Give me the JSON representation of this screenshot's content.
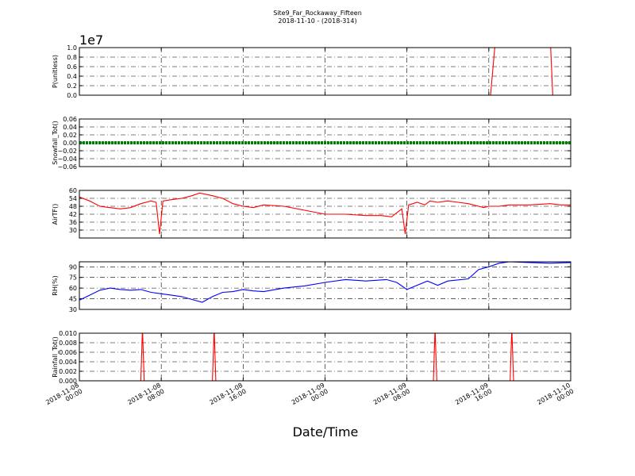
{
  "chart_data": {
    "type": "line",
    "title": "Site9_Far_Rockaway_Fifteen",
    "subtitle": "2018-11-10 - (2018-314)",
    "xlabel": "Date/Time",
    "x_range": [
      "2018-11-08 00:00",
      "2018-11-10 00:00"
    ],
    "x_ticks": [
      "2018-11-08 00:00",
      "2018-11-08 08:00",
      "2018-11-08 16:00",
      "2018-11-09 00:00",
      "2018-11-09 08:00",
      "2018-11-09 16:00",
      "2018-11-10 00:00"
    ],
    "x_tick_labels": [
      [
        "2018-11-08",
        "00:00"
      ],
      [
        "2018-11-08",
        "08:00"
      ],
      [
        "2018-11-08",
        "16:00"
      ],
      [
        "2018-11-09",
        "00:00"
      ],
      [
        "2018-11-09",
        "08:00"
      ],
      [
        "2018-11-09",
        "16:00"
      ],
      [
        "2018-11-10",
        "00:00"
      ]
    ],
    "grid": true,
    "panels": [
      {
        "ylabel": "P(unitless)",
        "offset_label": "1e7",
        "ylim": [
          0,
          1.0
        ],
        "yticks": [
          0.0,
          0.2,
          0.4,
          0.6,
          0.8,
          1.0
        ],
        "ytick_labels": [
          "0.0",
          "0.2",
          "0.4",
          "0.6",
          "0.8",
          "1.0"
        ],
        "series": [
          {
            "color": "#ff0000",
            "x": [
              "2018-11-08 00:00",
              "2018-11-09 16:10",
              "2018-11-09 16:40",
              "2018-11-09 22:00",
              "2018-11-09 22:15",
              "2018-11-10 00:00"
            ],
            "y": [
              0,
              0,
              1.2,
              1.2,
              0,
              0
            ]
          }
        ]
      },
      {
        "ylabel": "Snowfall_Tot()",
        "ylim": [
          -0.06,
          0.06
        ],
        "yticks": [
          -0.06,
          -0.04,
          -0.02,
          0.0,
          0.02,
          0.04,
          0.06
        ],
        "ytick_labels": [
          "−0.06",
          "−0.04",
          "−0.02",
          "0.00",
          "0.02",
          "0.04",
          "0.06"
        ],
        "series": [
          {
            "color": "#008000",
            "style": "thick",
            "x": [
              "2018-11-08 00:00",
              "2018-11-10 00:00"
            ],
            "y": [
              0,
              0
            ]
          }
        ]
      },
      {
        "ylabel": "AirTF()",
        "ylim": [
          24,
          60
        ],
        "yticks": [
          30,
          36,
          42,
          48,
          54,
          60
        ],
        "ytick_labels": [
          "30",
          "36",
          "42",
          "48",
          "54",
          "60"
        ],
        "series": [
          {
            "color": "#ff0000",
            "x": [
              "2018-11-08 00:00",
              "2018-11-08 01:00",
              "2018-11-08 02:00",
              "2018-11-08 03:00",
              "2018-11-08 04:00",
              "2018-11-08 05:00",
              "2018-11-08 06:00",
              "2018-11-08 07:00",
              "2018-11-08 07:30",
              "2018-11-08 07:50",
              "2018-11-08 08:10",
              "2018-11-08 09:00",
              "2018-11-08 10:00",
              "2018-11-08 11:00",
              "2018-11-08 11:45",
              "2018-11-08 13:00",
              "2018-11-08 14:00",
              "2018-11-08 15:00",
              "2018-11-08 16:00",
              "2018-11-08 17:00",
              "2018-11-08 18:00",
              "2018-11-08 20:00",
              "2018-11-08 22:00",
              "2018-11-09 00:00",
              "2018-11-09 02:00",
              "2018-11-09 04:00",
              "2018-11-09 05:30",
              "2018-11-09 06:30",
              "2018-11-09 07:30",
              "2018-11-09 07:50",
              "2018-11-09 08:10",
              "2018-11-09 09:00",
              "2018-11-09 09:45",
              "2018-11-09 10:15",
              "2018-11-09 11:00",
              "2018-11-09 12:00",
              "2018-11-09 13:00",
              "2018-11-09 14:00",
              "2018-11-09 15:00",
              "2018-11-09 15:30",
              "2018-11-09 16:00",
              "2018-11-09 17:00",
              "2018-11-09 18:00",
              "2018-11-09 20:00",
              "2018-11-09 22:00",
              "2018-11-09 23:00",
              "2018-11-10 00:00"
            ],
            "y": [
              55,
              52,
              48,
              47,
              46,
              47,
              50,
              52,
              51,
              27,
              52,
              53,
              54,
              56,
              58,
              56,
              54,
              50,
              48,
              47,
              49,
              48,
              45,
              42,
              42,
              41,
              41,
              40,
              46,
              27,
              49,
              51,
              49,
              52,
              51,
              52,
              51,
              50,
              48,
              47,
              48,
              48,
              49,
              49,
              50,
              49,
              49
            ]
          }
        ]
      },
      {
        "ylabel": "RH(%)",
        "ylim": [
          30,
          97
        ],
        "yticks": [
          30,
          45,
          60,
          75,
          90
        ],
        "ytick_labels": [
          "30",
          "45",
          "60",
          "75",
          "90"
        ],
        "series": [
          {
            "color": "#0000ff",
            "x": [
              "2018-11-08 00:00",
              "2018-11-08 01:00",
              "2018-11-08 02:00",
              "2018-11-08 03:00",
              "2018-11-08 04:00",
              "2018-11-08 05:00",
              "2018-11-08 06:00",
              "2018-11-08 07:00",
              "2018-11-08 08:00",
              "2018-11-08 09:00",
              "2018-11-08 10:00",
              "2018-11-08 11:00",
              "2018-11-08 12:00",
              "2018-11-08 13:00",
              "2018-11-08 14:00",
              "2018-11-08 15:00",
              "2018-11-08 16:00",
              "2018-11-08 17:00",
              "2018-11-08 18:00",
              "2018-11-08 20:00",
              "2018-11-08 22:00",
              "2018-11-09 00:00",
              "2018-11-09 02:00",
              "2018-11-09 04:00",
              "2018-11-09 06:00",
              "2018-11-09 07:00",
              "2018-11-09 08:00",
              "2018-11-09 10:00",
              "2018-11-09 11:00",
              "2018-11-09 12:00",
              "2018-11-09 14:00",
              "2018-11-09 15:00",
              "2018-11-09 16:00",
              "2018-11-09 17:00",
              "2018-11-09 18:00",
              "2018-11-09 20:00",
              "2018-11-09 22:00",
              "2018-11-10 00:00"
            ],
            "y": [
              43,
              50,
              57,
              60,
              58,
              57,
              58,
              54,
              52,
              50,
              48,
              44,
              40,
              48,
              54,
              55,
              58,
              56,
              55,
              60,
              63,
              68,
              72,
              70,
              72,
              68,
              58,
              70,
              64,
              70,
              73,
              86,
              90,
              95,
              97,
              96,
              95,
              96
            ]
          }
        ]
      },
      {
        "ylabel": "Rainfall_Tot()",
        "ylim": [
          0,
          0.01
        ],
        "yticks": [
          0.0,
          0.002,
          0.004,
          0.006,
          0.008,
          0.01
        ],
        "ytick_labels": [
          "0.000",
          "0.002",
          "0.004",
          "0.006",
          "0.008",
          "0.010"
        ],
        "series": [
          {
            "color": "#ff0000",
            "x": [
              "2018-11-08 00:00",
              "2018-11-08 06:00",
              "2018-11-08 06:10",
              "2018-11-08 06:20",
              "2018-11-08 13:00",
              "2018-11-08 13:10",
              "2018-11-08 13:20",
              "2018-11-09 10:35",
              "2018-11-09 10:45",
              "2018-11-09 10:55",
              "2018-11-09 18:05",
              "2018-11-09 18:15",
              "2018-11-09 18:25",
              "2018-11-10 00:00"
            ],
            "y": [
              0,
              0,
              0.011,
              0,
              0,
              0.011,
              0,
              0,
              0.011,
              0,
              0,
              0.011,
              0,
              0
            ]
          }
        ]
      }
    ]
  }
}
